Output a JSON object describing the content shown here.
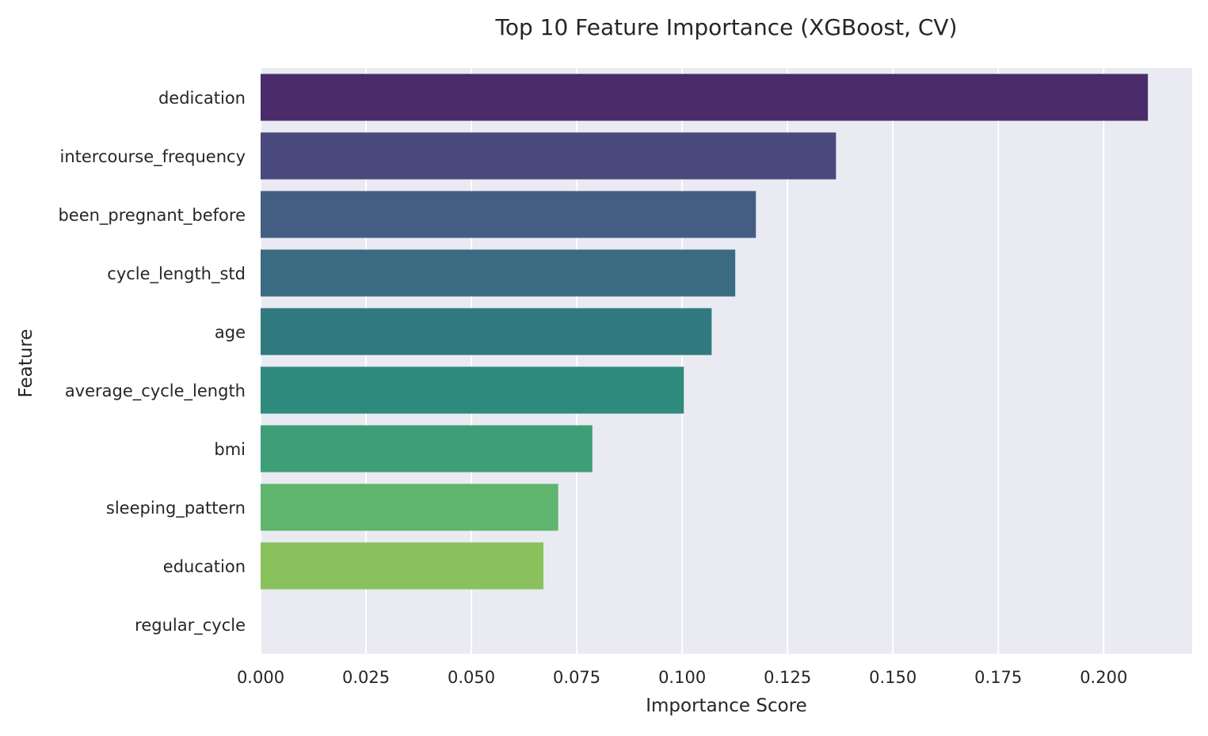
{
  "chart_data": {
    "type": "bar",
    "orientation": "horizontal",
    "title": "Top 10 Feature Importance (XGBoost, CV)",
    "xlabel": "Importance Score",
    "ylabel": "Feature",
    "xlim": [
      0,
      0.221
    ],
    "x_ticks": [
      "0.000",
      "0.025",
      "0.050",
      "0.075",
      "0.100",
      "0.125",
      "0.150",
      "0.175",
      "0.200"
    ],
    "categories": [
      "dedication",
      "intercourse_frequency",
      "been_pregnant_before",
      "cycle_length_std",
      "age",
      "average_cycle_length",
      "bmi",
      "sleeping_pattern",
      "education",
      "regular_cycle"
    ],
    "values": [
      0.2105,
      0.1365,
      0.1175,
      0.1126,
      0.107,
      0.1004,
      0.0787,
      0.0706,
      0.0671,
      0.0
    ],
    "colors": [
      "#4a2c6a",
      "#4a497d",
      "#445e83",
      "#3a6b80",
      "#317a7f",
      "#2e8a7d",
      "#3d9e78",
      "#5fb46e",
      "#89c25d",
      "#c8d73e"
    ],
    "grid": true,
    "background": "#eaeaf2"
  }
}
